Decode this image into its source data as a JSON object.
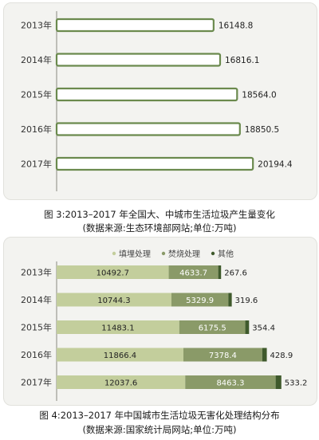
{
  "chart_data": [
    {
      "type": "bar",
      "orientation": "horizontal",
      "categories": [
        "2013年",
        "2014年",
        "2015年",
        "2016年",
        "2017年"
      ],
      "values": [
        16148.8,
        16816.1,
        18564.0,
        18850.5,
        20194.4
      ],
      "value_labels": [
        "16148.8",
        "16816.1",
        "18564.0",
        "18850.5",
        "20194.4"
      ],
      "title": "图 3:2013–2017 年全国大、中城市生活垃圾产生量变化",
      "subtitle": "(数据来源:生态环境部网站;单位:万吨)",
      "xlim": [
        0,
        21000
      ],
      "grid": false,
      "colors": {
        "bar_fill": "#ffffff",
        "bar_border": "#6b8a4e",
        "panel_bg": "#f3f3f0"
      }
    },
    {
      "type": "bar",
      "orientation": "horizontal",
      "stacked": true,
      "categories": [
        "2013年",
        "2014年",
        "2015年",
        "2016年",
        "2017年"
      ],
      "series": [
        {
          "name": "填埋处理",
          "values": [
            10492.7,
            10744.3,
            11483.1,
            11866.4,
            12037.6
          ],
          "labels": [
            "10492.7",
            "10744.3",
            "11483.1",
            "11866.4",
            "12037.6"
          ],
          "color": "#c3ce9c"
        },
        {
          "name": "焚烧处理",
          "values": [
            4633.7,
            5329.9,
            6175.5,
            7378.4,
            8463.3
          ],
          "labels": [
            "4633.7",
            "5329.9",
            "6175.5",
            "7378.4",
            "8463.3"
          ],
          "color": "#8a9a68"
        },
        {
          "name": "其他",
          "values": [
            267.6,
            319.6,
            354.4,
            428.9,
            533.2
          ],
          "labels": [
            "267.6",
            "319.6",
            "354.4",
            "428.9",
            "533.2"
          ],
          "color": "#3f5a2c"
        }
      ],
      "title": "图 4:2013–2017 年中国城市生活垃圾无害化处理结构分布",
      "subtitle": "(数据来源:国家统计局网站;单位:万吨)",
      "legend_position": "top",
      "xlim": [
        0,
        21200
      ],
      "grid": false
    }
  ]
}
